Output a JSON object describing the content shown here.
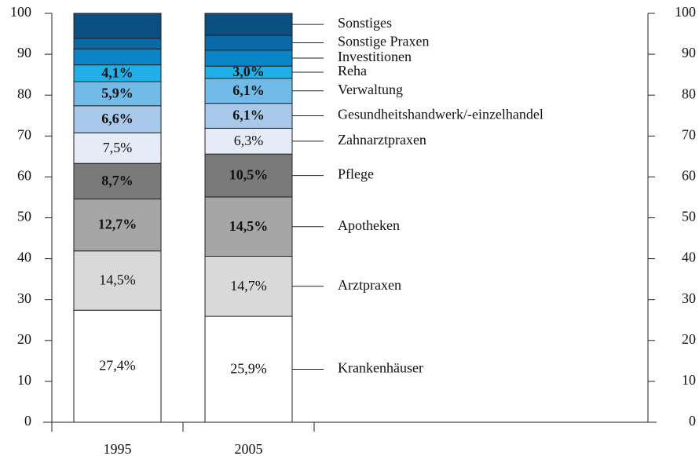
{
  "chart_data": {
    "type": "stacked_bar",
    "categories": [
      "1995",
      "2005"
    ],
    "series": [
      {
        "name": "Krankenhäuser",
        "color": "#ffffff",
        "values": [
          27.4,
          25.9
        ],
        "value_labels": [
          "27,4%",
          "25,9%"
        ]
      },
      {
        "name": "Arztpraxen",
        "color": "#d9d9d9",
        "values": [
          14.5,
          14.7
        ],
        "value_labels": [
          "14,5%",
          "14,7%"
        ]
      },
      {
        "name": "Apotheken",
        "color": "#a6a6a6",
        "values": [
          12.7,
          14.5
        ],
        "value_labels": [
          "12,7%",
          "14,5%"
        ]
      },
      {
        "name": "Pflege",
        "color": "#7a7a7a",
        "values": [
          8.7,
          10.5
        ],
        "value_labels": [
          "8,7%",
          "10,5%"
        ]
      },
      {
        "name": "Zahnarztpraxen",
        "color": "#e6ecf7",
        "values": [
          7.5,
          6.3
        ],
        "value_labels": [
          "7,5%",
          "6,3%"
        ]
      },
      {
        "name": "Gesundheitshandwerk/-einzelhandel",
        "color": "#a9c9ea",
        "values": [
          6.6,
          6.1
        ],
        "value_labels": [
          "6,6%",
          "6,1%"
        ]
      },
      {
        "name": "Verwaltung",
        "color": "#72bbe8",
        "values": [
          5.9,
          6.1
        ],
        "value_labels": [
          "5,9%",
          "6,1%"
        ]
      },
      {
        "name": "Reha",
        "color": "#1eb0e6",
        "values": [
          4.1,
          3.0
        ],
        "value_labels": [
          "4,1%",
          "3,0%"
        ]
      },
      {
        "name": "Investitionen",
        "color": "#0a84c6",
        "values": [
          3.9,
          3.9
        ],
        "value_labels": [
          null,
          null
        ]
      },
      {
        "name": "Sonstige Praxen",
        "color": "#0a6aa8",
        "values": [
          2.6,
          3.6
        ],
        "value_labels": [
          null,
          null
        ]
      },
      {
        "name": "Sonstiges",
        "color": "#0b4f80",
        "values": [
          6.1,
          5.4
        ],
        "value_labels": [
          null,
          null
        ]
      }
    ],
    "ylim": [
      0,
      100
    ],
    "yticks": [
      0,
      10,
      20,
      30,
      40,
      50,
      60,
      70,
      80,
      90,
      100
    ],
    "y2lim": [
      0,
      100
    ],
    "y2ticks": [
      0,
      10,
      20,
      30,
      40,
      50,
      60,
      70,
      80,
      90,
      100
    ]
  }
}
